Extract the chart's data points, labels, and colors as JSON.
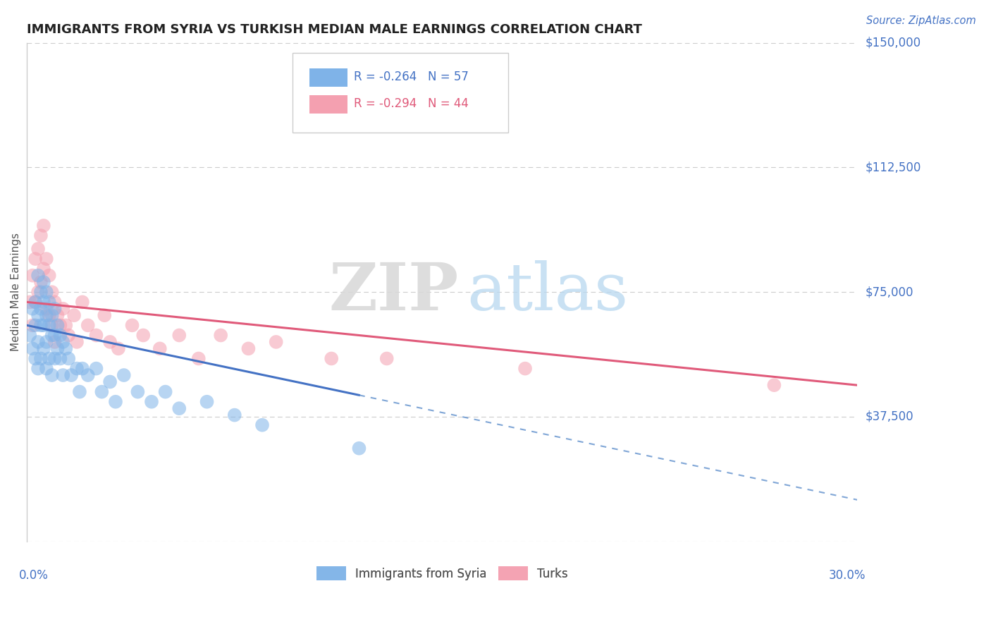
{
  "title": "IMMIGRANTS FROM SYRIA VS TURKISH MEDIAN MALE EARNINGS CORRELATION CHART",
  "source": "Source: ZipAtlas.com",
  "ylabel": "Median Male Earnings",
  "x_min": 0.0,
  "x_max": 0.3,
  "y_min": 0,
  "y_max": 150000,
  "yticks": [
    0,
    37500,
    75000,
    112500,
    150000
  ],
  "ytick_labels": [
    "",
    "$37,500",
    "$75,000",
    "$112,500",
    "$150,000"
  ],
  "legend1_r": "R = -0.264",
  "legend1_n": "N = 57",
  "legend2_r": "R = -0.294",
  "legend2_n": "N = 44",
  "legend_label1": "Immigrants from Syria",
  "legend_label2": "Turks",
  "color_syria": "#7fb3e8",
  "color_turks": "#f4a0b0",
  "watermark_zip": "ZIP",
  "watermark_atlas": "atlas",
  "syria_x": [
    0.001,
    0.002,
    0.002,
    0.003,
    0.003,
    0.003,
    0.004,
    0.004,
    0.004,
    0.004,
    0.005,
    0.005,
    0.005,
    0.005,
    0.006,
    0.006,
    0.006,
    0.006,
    0.007,
    0.007,
    0.007,
    0.007,
    0.008,
    0.008,
    0.008,
    0.009,
    0.009,
    0.009,
    0.01,
    0.01,
    0.01,
    0.011,
    0.011,
    0.012,
    0.012,
    0.013,
    0.013,
    0.014,
    0.015,
    0.016,
    0.018,
    0.019,
    0.02,
    0.022,
    0.025,
    0.027,
    0.03,
    0.032,
    0.035,
    0.04,
    0.045,
    0.05,
    0.055,
    0.065,
    0.075,
    0.085,
    0.12
  ],
  "syria_y": [
    62000,
    58000,
    70000,
    65000,
    72000,
    55000,
    80000,
    68000,
    60000,
    52000,
    75000,
    70000,
    65000,
    55000,
    78000,
    72000,
    65000,
    58000,
    75000,
    68000,
    60000,
    52000,
    72000,
    65000,
    55000,
    68000,
    62000,
    50000,
    70000,
    62000,
    55000,
    65000,
    58000,
    62000,
    55000,
    60000,
    50000,
    58000,
    55000,
    50000,
    52000,
    45000,
    52000,
    50000,
    52000,
    45000,
    48000,
    42000,
    50000,
    45000,
    42000,
    45000,
    40000,
    42000,
    38000,
    35000,
    28000
  ],
  "turks_x": [
    0.001,
    0.002,
    0.002,
    0.003,
    0.003,
    0.004,
    0.004,
    0.005,
    0.005,
    0.006,
    0.006,
    0.007,
    0.007,
    0.008,
    0.008,
    0.009,
    0.009,
    0.01,
    0.01,
    0.011,
    0.012,
    0.013,
    0.014,
    0.015,
    0.017,
    0.018,
    0.02,
    0.022,
    0.025,
    0.028,
    0.03,
    0.033,
    0.038,
    0.042,
    0.048,
    0.055,
    0.062,
    0.07,
    0.08,
    0.09,
    0.11,
    0.13,
    0.18,
    0.27
  ],
  "turks_y": [
    72000,
    80000,
    65000,
    85000,
    72000,
    88000,
    75000,
    92000,
    78000,
    95000,
    82000,
    85000,
    70000,
    80000,
    68000,
    75000,
    65000,
    72000,
    60000,
    68000,
    65000,
    70000,
    65000,
    62000,
    68000,
    60000,
    72000,
    65000,
    62000,
    68000,
    60000,
    58000,
    65000,
    62000,
    58000,
    62000,
    55000,
    62000,
    58000,
    60000,
    55000,
    55000,
    52000,
    47000
  ],
  "trendline_syria_x_start": 0.001,
  "trendline_syria_x_solid_end": 0.12,
  "trendline_syria_x_dash_end": 0.3,
  "trendline_turks_x_start": 0.001,
  "trendline_turks_x_end": 0.3
}
